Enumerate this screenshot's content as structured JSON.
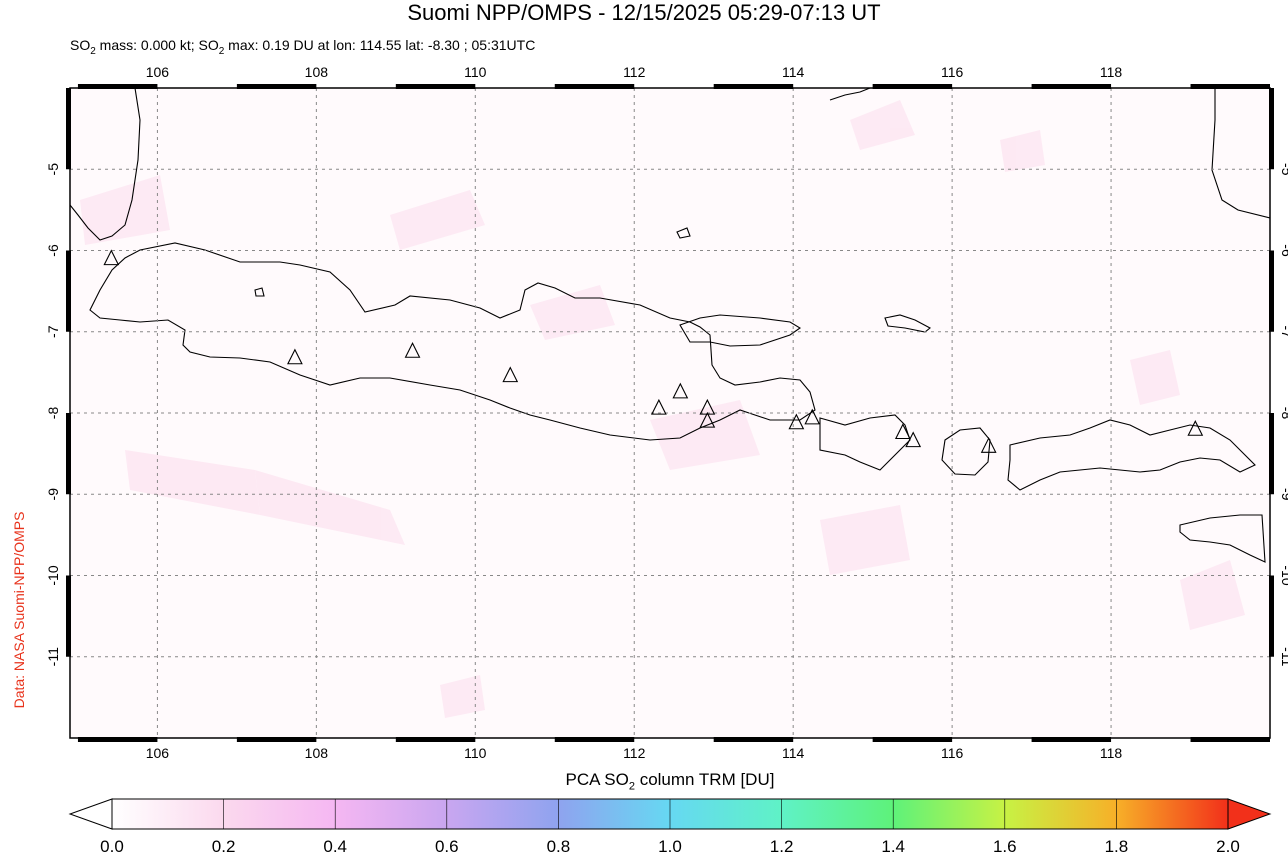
{
  "header": {
    "title": "Suomi NPP/OMPS - 12/15/2025 05:29-07:13 UT",
    "subtitle_prefix": "SO",
    "subtitle_sub": "2",
    "subtitle_mid": " mass: 0.000 kt; SO",
    "subtitle_sub2": "2",
    "subtitle_rest": " max: 0.19 DU at lon: 114.55 lat: -8.30 ; 05:31UTC"
  },
  "credit": "Data: NASA Suomi-NPP/OMPS",
  "map": {
    "lon_range": [
      104.9,
      120.0
    ],
    "lat_range": [
      -12.0,
      -4.0
    ],
    "lon_ticks": [
      "106",
      "108",
      "110",
      "112",
      "114",
      "116",
      "118"
    ],
    "lat_ticks": [
      "-5",
      "-6",
      "-7",
      "-8",
      "-9",
      "-10",
      "-11"
    ],
    "volcanoes": [
      {
        "lon": 105.42,
        "lat": -6.1
      },
      {
        "lon": 107.73,
        "lat": -7.32
      },
      {
        "lon": 109.21,
        "lat": -7.24
      },
      {
        "lon": 110.44,
        "lat": -7.54
      },
      {
        "lon": 112.31,
        "lat": -7.94
      },
      {
        "lon": 112.58,
        "lat": -7.74
      },
      {
        "lon": 112.92,
        "lat": -7.94
      },
      {
        "lon": 112.92,
        "lat": -8.1
      },
      {
        "lon": 114.04,
        "lat": -8.12
      },
      {
        "lon": 114.24,
        "lat": -8.06
      },
      {
        "lon": 115.38,
        "lat": -8.24
      },
      {
        "lon": 115.51,
        "lat": -8.34
      },
      {
        "lon": 116.46,
        "lat": -8.41
      },
      {
        "lon": 119.06,
        "lat": -8.2
      }
    ],
    "so2_max_lon": 114.55,
    "so2_max_lat": -8.3
  },
  "colorbar": {
    "label_prefix": "PCA SO",
    "label_sub": "2",
    "label_rest": " column TRM [DU]",
    "ticks": [
      "0.0",
      "0.2",
      "0.4",
      "0.6",
      "0.8",
      "1.0",
      "1.2",
      "1.4",
      "1.6",
      "1.8",
      "2.0"
    ],
    "colors": [
      "#ffffff",
      "#fbd9ee",
      "#f5b7f2",
      "#c9a6f0",
      "#8fa3ef",
      "#66d8f2",
      "#5ff2c6",
      "#5ef27a",
      "#c7f244",
      "#f7b028",
      "#f2301a"
    ]
  }
}
